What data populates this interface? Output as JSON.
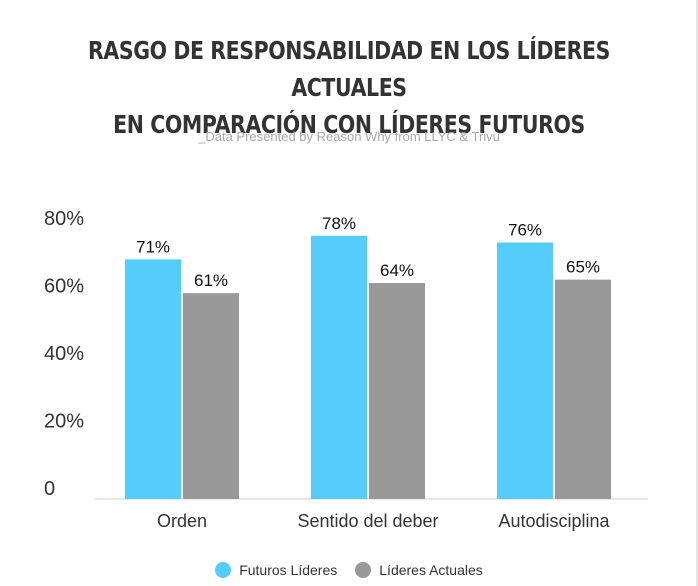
{
  "title_line1": "Rasgo de responsabilidad en los líderes actuales",
  "title_line2": "en comparación con líderes futuros",
  "subtitle": "_Data Presented by Reason Why from LLYC & Trivu",
  "colors": {
    "futuros": "#56ccfa",
    "actuales": "#999999"
  },
  "chart_data": {
    "type": "bar",
    "title": "Rasgo de responsabilidad en los líderes actuales en comparación con líderes futuros",
    "categories": [
      "Orden",
      "Sentido del deber",
      "Autodisciplina"
    ],
    "series": [
      {
        "name": "Futuros Líderes",
        "values": [
          71,
          78,
          76
        ],
        "labels": [
          "71%",
          "78%",
          "76%"
        ]
      },
      {
        "name": "Líderes Actuales",
        "values": [
          61,
          64,
          65
        ],
        "labels": [
          "61%",
          "64%",
          "65%"
        ]
      }
    ],
    "yticks": [
      "0",
      "20%",
      "40%",
      "60%",
      "80%"
    ],
    "ytick_values": [
      0,
      20,
      40,
      60,
      80
    ],
    "ylim": [
      0,
      80
    ],
    "grid": false,
    "legend": "bottom"
  }
}
